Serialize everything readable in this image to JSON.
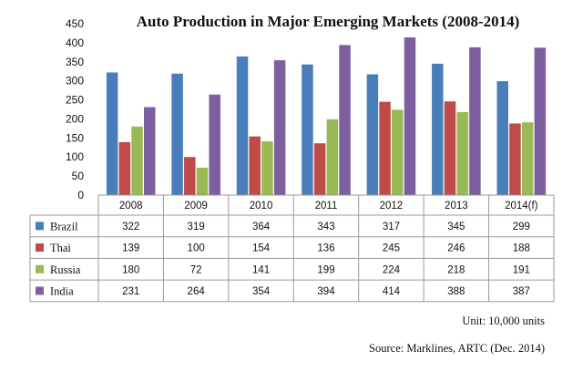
{
  "chart_data": {
    "type": "bar",
    "title": "Auto Production in Major Emerging Markets (2008-2014)",
    "categories": [
      "2008",
      "2009",
      "2010",
      "2011",
      "2012",
      "2013",
      "2014(f)"
    ],
    "series": [
      {
        "name": "Brazil",
        "color": "#4a7ebb",
        "values": [
          322,
          319,
          364,
          343,
          317,
          345,
          299
        ]
      },
      {
        "name": "Thai",
        "color": "#be4b48",
        "values": [
          139,
          100,
          154,
          136,
          245,
          246,
          188
        ]
      },
      {
        "name": "Russia",
        "color": "#98b954",
        "values": [
          180,
          72,
          141,
          199,
          224,
          218,
          191
        ]
      },
      {
        "name": "India",
        "color": "#7d5fa0",
        "values": [
          231,
          264,
          354,
          394,
          414,
          388,
          387
        ]
      }
    ],
    "ylim": [
      0,
      450
    ],
    "yticks": [
      0,
      50,
      100,
      150,
      200,
      250,
      300,
      350,
      400,
      450
    ],
    "grid": false,
    "legend": "data-table-left"
  },
  "notes": {
    "unit": "Unit: 10,000 units",
    "source": "Source: Marklines, ARTC (Dec. 2014)"
  }
}
